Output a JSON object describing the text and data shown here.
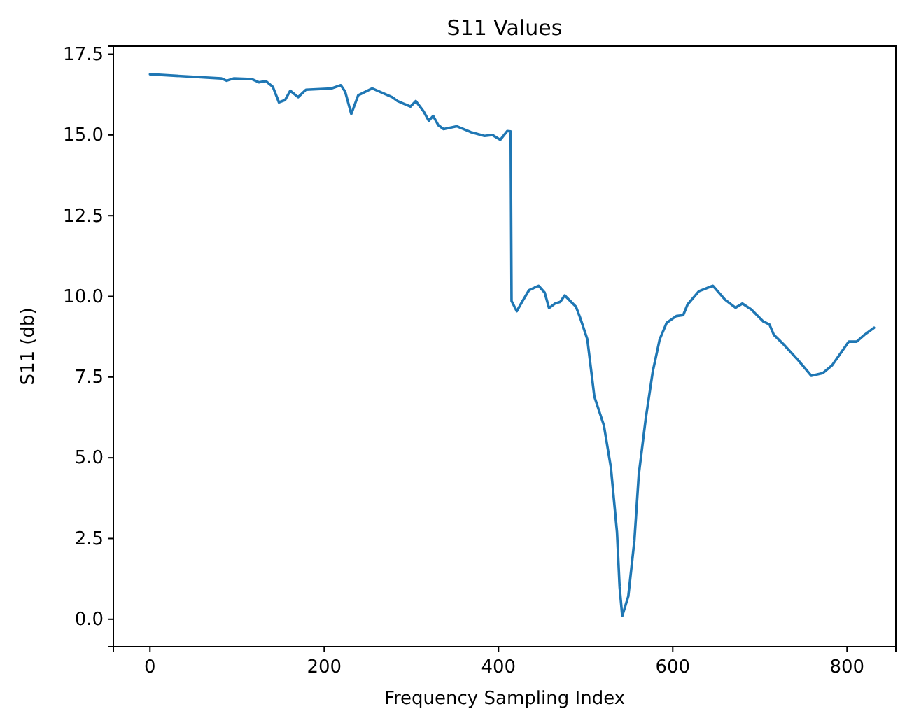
{
  "chart_data": {
    "type": "line",
    "title": "S11 Values",
    "xlabel": "Frequency Sampling Index",
    "ylabel": "S11 (db)",
    "xlim": [
      -42,
      856
    ],
    "ylim": [
      -0.85,
      17.75
    ],
    "xticks": [
      0,
      200,
      400,
      600,
      800
    ],
    "yticks": [
      {
        "value": 0,
        "label": "0.0"
      },
      {
        "value": 2.5,
        "label": "2.5"
      },
      {
        "value": 5,
        "label": "5.0"
      },
      {
        "value": 7.5,
        "label": "7.5"
      },
      {
        "value": 10,
        "label": "10.0"
      },
      {
        "value": 12.5,
        "label": "12.5"
      },
      {
        "value": 15,
        "label": "15.0"
      },
      {
        "value": 17.5,
        "label": "17.5"
      }
    ],
    "series": [
      {
        "color": "#1f77b4",
        "x": [
          0,
          82,
          88,
          96,
          117,
          125,
          133,
          141,
          148,
          155,
          161,
          170,
          179,
          208,
          219,
          224,
          231,
          239,
          255,
          278,
          284,
          291,
          299,
          305,
          314,
          320,
          325,
          331,
          337,
          352,
          368,
          384,
          393,
          402,
          410,
          414,
          415,
          421,
          427,
          435,
          446,
          453,
          458,
          465,
          471,
          476,
          489,
          494,
          502,
          510,
          521,
          529,
          536,
          539,
          542,
          549,
          556,
          561,
          569,
          577,
          585,
          593,
          604,
          612,
          617,
          630,
          646,
          660,
          672,
          680,
          690,
          704,
          711,
          716,
          727,
          743,
          759,
          772,
          783,
          802,
          811,
          820,
          831
        ],
        "values": [
          16.88,
          16.75,
          16.68,
          16.75,
          16.73,
          16.63,
          16.67,
          16.49,
          16.01,
          16.08,
          16.37,
          16.17,
          16.4,
          16.44,
          16.54,
          16.34,
          15.65,
          16.23,
          16.44,
          16.17,
          16.05,
          15.97,
          15.88,
          16.05,
          15.73,
          15.44,
          15.59,
          15.3,
          15.18,
          15.27,
          15.09,
          14.97,
          15.0,
          14.85,
          15.12,
          15.11,
          9.86,
          9.54,
          9.83,
          10.19,
          10.33,
          10.12,
          9.64,
          9.78,
          9.83,
          10.03,
          9.68,
          9.32,
          8.67,
          6.9,
          6.0,
          4.7,
          2.7,
          1.0,
          0.1,
          0.71,
          2.44,
          4.47,
          6.21,
          7.66,
          8.67,
          9.18,
          9.39,
          9.42,
          9.75,
          10.16,
          10.33,
          9.9,
          9.65,
          9.78,
          9.6,
          9.22,
          9.13,
          8.81,
          8.52,
          8.05,
          7.54,
          7.62,
          7.87,
          8.6,
          8.6,
          8.81,
          9.03
        ]
      }
    ]
  }
}
